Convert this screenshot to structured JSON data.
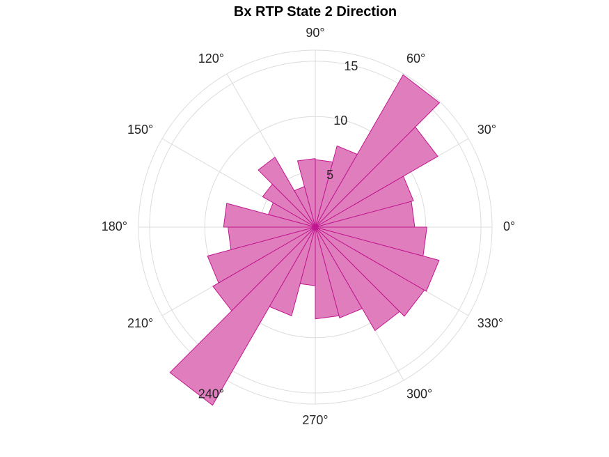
{
  "chart_data": {
    "type": "polar-histogram",
    "title": "Bx  RTP State 2 Direction",
    "bin_width_deg": 15,
    "bin_start_deg": [
      0,
      15,
      30,
      45,
      60,
      75,
      90,
      105,
      120,
      135,
      150,
      165,
      180,
      195,
      210,
      225,
      240,
      255,
      270,
      285,
      300,
      315,
      330,
      345
    ],
    "counts": [
      9.0,
      9.2,
      12.8,
      15.9,
      7.6,
      6.1,
      6.2,
      3.8,
      7.3,
      5.5,
      4.4,
      8.3,
      7.9,
      10.1,
      10.7,
      18.6,
      8.3,
      5.3,
      8.3,
      8.5,
      10.8,
      11.4,
      11.6,
      10.1
    ],
    "radial_ticks": [
      5,
      10,
      15
    ],
    "rlim": [
      0,
      16
    ],
    "angle_ticks": [
      0,
      30,
      60,
      90,
      120,
      150,
      180,
      210,
      240,
      270,
      300,
      330
    ],
    "angle_tick_labels": [
      "0°",
      "30°",
      "60°",
      "90°",
      "120°",
      "150°",
      "180°",
      "210°",
      "240°",
      "270°",
      "300°",
      "330°"
    ],
    "colors": {
      "fill": "#e07ebd",
      "edge": "#c0168f",
      "grid": "#dcdcdc"
    },
    "grid": true
  }
}
